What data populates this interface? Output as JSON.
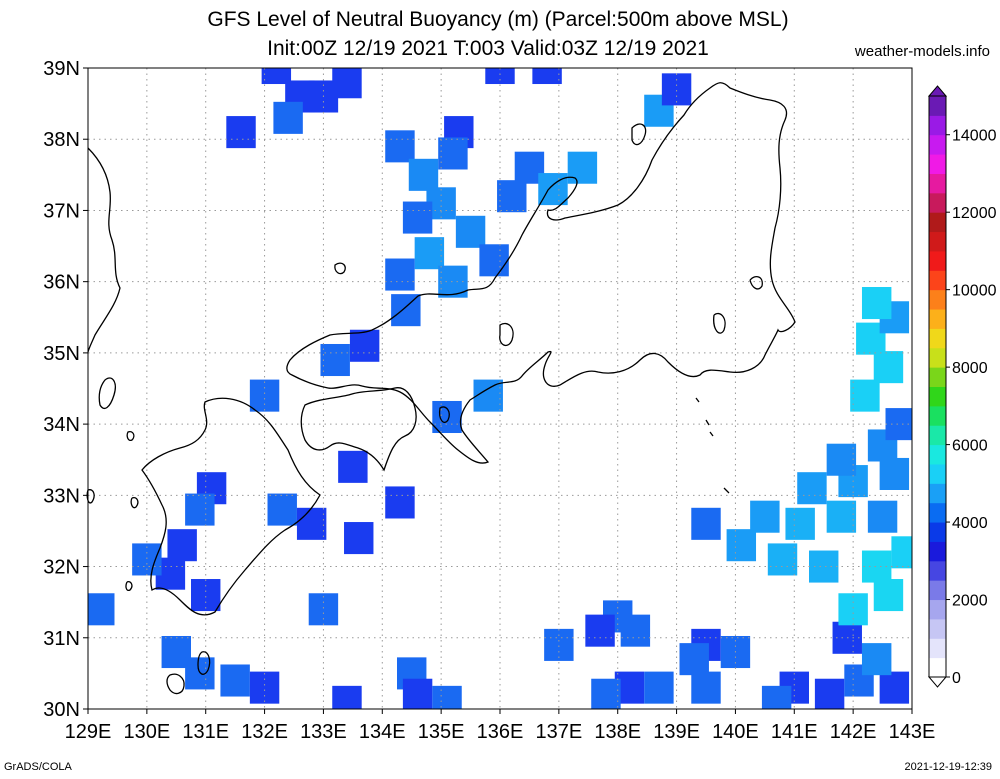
{
  "title_line1": "GFS Level of Neutral Buoyancy (m) (Parcel:500m above MSL)",
  "title_line2": "Init:00Z 12/19 2021 T:003 Valid:03Z 12/19 2021",
  "credit": "weather-models.info",
  "footer_left": "GrADS/COLA",
  "footer_right": "2021-12-19-12:39",
  "map": {
    "lon_range": [
      129,
      143
    ],
    "lat_range": [
      30,
      39
    ],
    "grid": "dotted",
    "lon_ticks": [
      "129E",
      "130E",
      "131E",
      "132E",
      "133E",
      "134E",
      "135E",
      "136E",
      "137E",
      "138E",
      "139E",
      "140E",
      "141E",
      "142E",
      "143E"
    ],
    "lat_ticks": [
      "30N",
      "31N",
      "32N",
      "33N",
      "34N",
      "35N",
      "36N",
      "37N",
      "38N",
      "39N"
    ],
    "colors": {
      "frame": "#000000",
      "grid": "#9a9a9a",
      "coast": "#000000"
    }
  },
  "colorbar": {
    "labels": [
      "0",
      "2000",
      "4000",
      "6000",
      "8000",
      "10000",
      "12000",
      "14000"
    ],
    "colors": [
      "#ffffff",
      "#e4e4fb",
      "#c6c6f4",
      "#a6a6ee",
      "#7a7ae8",
      "#4646e2",
      "#1a1adc",
      "#0a3ae8",
      "#0a6cf2",
      "#1aa0f6",
      "#1ad0f6",
      "#1ae8e0",
      "#1ae8a8",
      "#1ae060",
      "#30d61a",
      "#7ad61a",
      "#c8e01a",
      "#f0d81a",
      "#fcb01a",
      "#fc801a",
      "#fc441a",
      "#f01a1a",
      "#d01a1a",
      "#b01a1a",
      "#c81a5c",
      "#e61aa0",
      "#f01ae6",
      "#c81af0",
      "#9a1ae6",
      "#6a1ab4"
    ]
  },
  "field_cells": [
    [
      132.2,
      39.0,
      "#1a3cf0"
    ],
    [
      132.6,
      38.6,
      "#1a3cf0"
    ],
    [
      133.0,
      38.6,
      "#1a3cf0"
    ],
    [
      133.4,
      38.8,
      "#1a3cf0"
    ],
    [
      132.4,
      38.3,
      "#1a6af2"
    ],
    [
      131.6,
      38.1,
      "#1a3cf0"
    ],
    [
      135.3,
      38.1,
      "#1a3cf0"
    ],
    [
      134.3,
      37.9,
      "#1a6af2"
    ],
    [
      135.2,
      37.8,
      "#1a6af2"
    ],
    [
      134.7,
      37.5,
      "#1a8af4"
    ],
    [
      136.5,
      37.6,
      "#1a6af2"
    ],
    [
      137.4,
      37.6,
      "#1a9cf6"
    ],
    [
      136.9,
      37.3,
      "#1a9cf6"
    ],
    [
      136.2,
      37.2,
      "#1a6af2"
    ],
    [
      135.0,
      37.1,
      "#1a8af4"
    ],
    [
      134.6,
      36.9,
      "#1a6af2"
    ],
    [
      135.5,
      36.7,
      "#1a8af4"
    ],
    [
      134.8,
      36.4,
      "#1a9cf6"
    ],
    [
      135.9,
      36.3,
      "#1a6af2"
    ],
    [
      134.3,
      36.1,
      "#1a6af2"
    ],
    [
      135.2,
      36.0,
      "#1a8af4"
    ],
    [
      134.4,
      35.6,
      "#1a6af2"
    ],
    [
      133.7,
      35.1,
      "#1a3cf0"
    ],
    [
      133.2,
      34.9,
      "#1a6af2"
    ],
    [
      132.0,
      34.4,
      "#1a6af2"
    ],
    [
      135.8,
      34.4,
      "#1a8af4"
    ],
    [
      135.1,
      34.1,
      "#1a6af2"
    ],
    [
      133.5,
      33.4,
      "#1a3cf0"
    ],
    [
      131.1,
      33.1,
      "#1a3cf0"
    ],
    [
      130.9,
      32.8,
      "#1a6af2"
    ],
    [
      132.3,
      32.8,
      "#1a6af2"
    ],
    [
      132.8,
      32.6,
      "#1a3cf0"
    ],
    [
      134.3,
      32.9,
      "#1a3cf0"
    ],
    [
      130.6,
      32.3,
      "#1a3cf0"
    ],
    [
      130.4,
      31.9,
      "#1a3cf0"
    ],
    [
      133.6,
      32.4,
      "#1a3cf0"
    ],
    [
      130.0,
      32.1,
      "#1a6af2"
    ],
    [
      131.0,
      31.6,
      "#1a3cf0"
    ],
    [
      129.2,
      31.4,
      "#1a6af2"
    ],
    [
      133.0,
      31.4,
      "#1a6af2"
    ],
    [
      138.0,
      31.3,
      "#1a6af2"
    ],
    [
      137.7,
      31.1,
      "#1a3cf0"
    ],
    [
      138.3,
      31.1,
      "#1a6af2"
    ],
    [
      130.5,
      30.8,
      "#1a6af2"
    ],
    [
      130.9,
      30.5,
      "#1a6af2"
    ],
    [
      131.5,
      30.4,
      "#1a6af2"
    ],
    [
      132.0,
      30.3,
      "#1a3cf0"
    ],
    [
      134.5,
      30.5,
      "#1a6af2"
    ],
    [
      133.4,
      30.1,
      "#1a3cf0"
    ],
    [
      134.6,
      30.2,
      "#1a3cf0"
    ],
    [
      135.1,
      30.1,
      "#1a6af2"
    ],
    [
      137.0,
      30.9,
      "#1a6af2"
    ],
    [
      138.2,
      30.3,
      "#1a3cf0"
    ],
    [
      137.8,
      30.2,
      "#1a6af2"
    ],
    [
      138.7,
      30.3,
      "#1a6af2"
    ],
    [
      139.5,
      30.9,
      "#1a3cf0"
    ],
    [
      139.3,
      30.7,
      "#1a6af2"
    ],
    [
      139.5,
      30.3,
      "#1a6af2"
    ],
    [
      140.0,
      30.8,
      "#1a6af2"
    ],
    [
      141.0,
      30.3,
      "#1a3cf0"
    ],
    [
      140.7,
      30.1,
      "#1a6af2"
    ],
    [
      141.6,
      30.2,
      "#1a3cf0"
    ],
    [
      142.1,
      30.4,
      "#1a6af2"
    ],
    [
      142.7,
      30.3,
      "#1a3cf0"
    ],
    [
      142.4,
      30.7,
      "#1a8af4"
    ],
    [
      141.9,
      31.0,
      "#1a3cf0"
    ],
    [
      142.0,
      31.4,
      "#1ad0f6"
    ],
    [
      142.6,
      31.6,
      "#1ad6f2"
    ],
    [
      142.4,
      32.0,
      "#1ad6f2"
    ],
    [
      142.9,
      32.2,
      "#1ad0f6"
    ],
    [
      141.5,
      32.0,
      "#1ab0f6"
    ],
    [
      140.8,
      32.1,
      "#1ab0f6"
    ],
    [
      140.1,
      32.3,
      "#1a9cf6"
    ],
    [
      139.5,
      32.6,
      "#1a6af2"
    ],
    [
      140.5,
      32.7,
      "#1a9cf6"
    ],
    [
      141.1,
      32.6,
      "#1ab0f6"
    ],
    [
      141.8,
      32.7,
      "#1ab0f6"
    ],
    [
      142.5,
      32.7,
      "#1a8af4"
    ],
    [
      141.3,
      33.1,
      "#1a9cf6"
    ],
    [
      142.0,
      33.2,
      "#1a9cf6"
    ],
    [
      142.7,
      33.3,
      "#1a8af4"
    ],
    [
      141.8,
      33.5,
      "#1a8af4"
    ],
    [
      142.5,
      33.7,
      "#1a8af4"
    ],
    [
      142.8,
      34.0,
      "#1a6af2"
    ],
    [
      142.2,
      34.4,
      "#1ad0f6"
    ],
    [
      142.6,
      34.8,
      "#1ad0f6"
    ],
    [
      142.3,
      35.2,
      "#1ad0f6"
    ],
    [
      142.7,
      35.5,
      "#1a9cf6"
    ],
    [
      142.4,
      35.7,
      "#1ad0f6"
    ],
    [
      138.7,
      38.4,
      "#1a9cf6"
    ],
    [
      139.0,
      38.7,
      "#1a3cf0"
    ],
    [
      136.0,
      39.0,
      "#1a3cf0"
    ],
    [
      136.8,
      39.0,
      "#1a3cf0"
    ]
  ]
}
